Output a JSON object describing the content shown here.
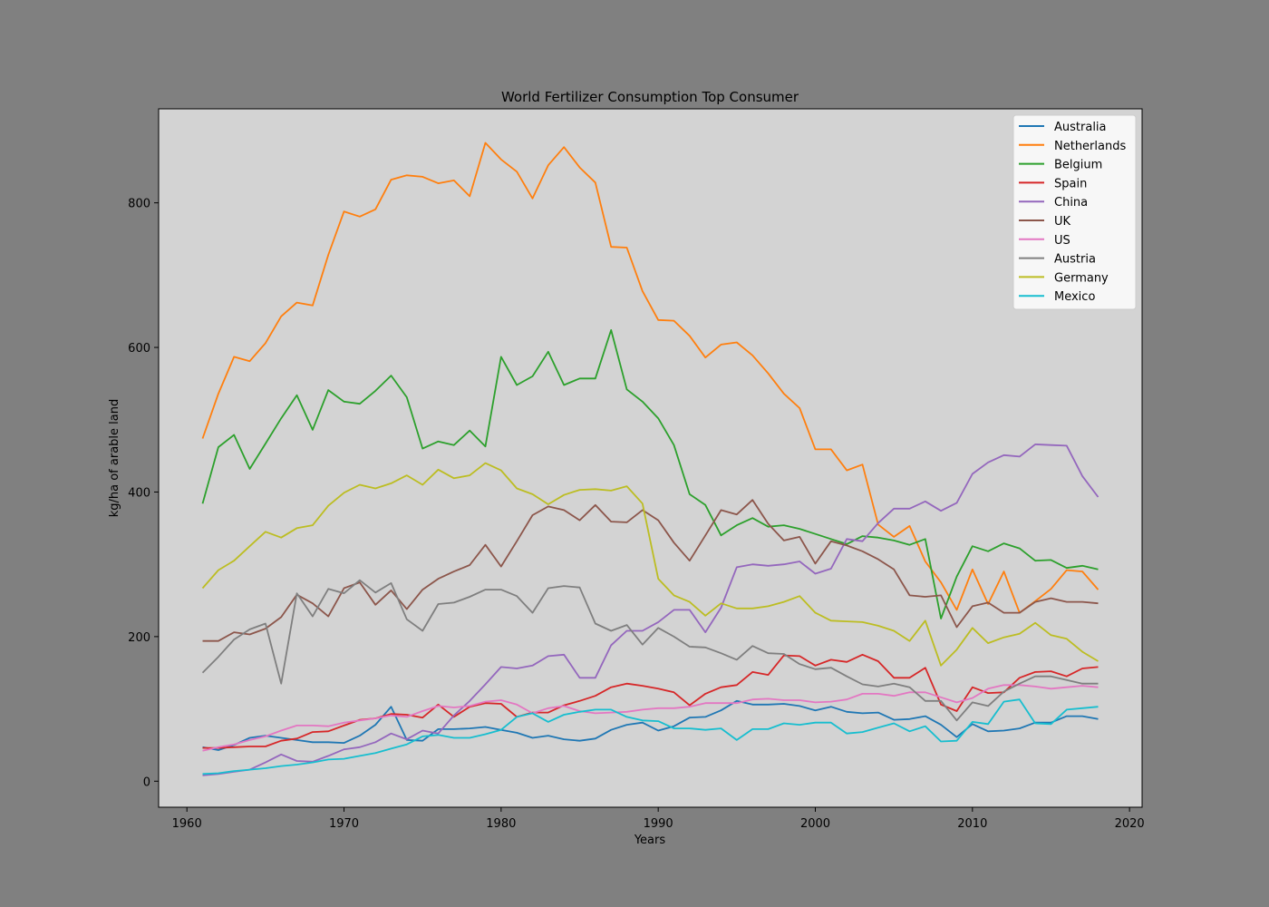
{
  "chart_data": {
    "type": "line",
    "title": "World Fertilizer Consumption Top Consumer",
    "xlabel": "Years",
    "ylabel": "kg/ha of arable land",
    "xlim": [
      1958.2,
      2020.8
    ],
    "ylim": [
      -36,
      930
    ],
    "xticks": [
      1960,
      1970,
      1980,
      1990,
      2000,
      2010,
      2020
    ],
    "yticks": [
      0,
      200,
      400,
      600,
      800
    ],
    "legend_position": "top-right",
    "x_start": 1961,
    "series": [
      {
        "name": "Australia",
        "color": "#1f77b4",
        "values": [
          47,
          43,
          50,
          60,
          63,
          60,
          57,
          54,
          54,
          53,
          63,
          78,
          103,
          57,
          56,
          72,
          72,
          73,
          75,
          71,
          67,
          60,
          63,
          58,
          56,
          59,
          71,
          78,
          81,
          70,
          76,
          88,
          89,
          98,
          111,
          106,
          106,
          107,
          104,
          98,
          103,
          96,
          94,
          95,
          85,
          86,
          90,
          78,
          61,
          79,
          69,
          70,
          73,
          81,
          81,
          90,
          90,
          86
        ]
      },
      {
        "name": "Netherlands",
        "color": "#ff7f0e",
        "values": [
          474,
          536,
          587,
          581,
          606,
          643,
          662,
          658,
          728,
          788,
          781,
          791,
          832,
          838,
          836,
          827,
          831,
          809,
          883,
          860,
          843,
          806,
          852,
          877,
          849,
          828,
          739,
          738,
          678,
          638,
          637,
          616,
          586,
          604,
          607,
          589,
          564,
          536,
          516,
          459,
          459,
          430,
          438,
          355,
          338,
          353,
          304,
          275,
          237,
          293,
          245,
          290,
          233,
          249,
          266,
          292,
          290,
          265
        ]
      },
      {
        "name": "Belgium",
        "color": "#2ca02c",
        "values": [
          384,
          462,
          479,
          432,
          467,
          502,
          534,
          486,
          541,
          525,
          522,
          540,
          561,
          531,
          460,
          470,
          465,
          485,
          463,
          587,
          548,
          560,
          594,
          548,
          557,
          557,
          624,
          542,
          525,
          502,
          465,
          397,
          382,
          340,
          354,
          364,
          352,
          354,
          349,
          342,
          335,
          328,
          339,
          337,
          333,
          327,
          335,
          225,
          283,
          325,
          318,
          329,
          322,
          305,
          306,
          295,
          298,
          293
        ]
      },
      {
        "name": "Spain",
        "color": "#d62728",
        "values": [
          46,
          46,
          47,
          48,
          48,
          56,
          59,
          68,
          69,
          77,
          85,
          87,
          93,
          92,
          88,
          106,
          89,
          103,
          108,
          107,
          89,
          95,
          95,
          105,
          111,
          118,
          130,
          135,
          132,
          128,
          123,
          105,
          121,
          130,
          133,
          151,
          147,
          174,
          173,
          160,
          168,
          165,
          175,
          166,
          143,
          143,
          157,
          106,
          97,
          130,
          122,
          123,
          143,
          151,
          152,
          145,
          156,
          158
        ]
      },
      {
        "name": "China",
        "color": "#9467bd",
        "values": [
          8,
          10,
          13,
          16,
          26,
          37,
          28,
          27,
          35,
          44,
          47,
          54,
          66,
          58,
          70,
          66,
          91,
          111,
          134,
          158,
          156,
          160,
          173,
          175,
          143,
          143,
          188,
          208,
          208,
          220,
          237,
          237,
          206,
          240,
          296,
          300,
          298,
          300,
          304,
          287,
          294,
          335,
          332,
          357,
          377,
          377,
          387,
          374,
          385,
          425,
          441,
          451,
          449,
          466,
          465,
          464,
          422,
          393
        ]
      },
      {
        "name": "UK",
        "color": "#8c564b",
        "values": [
          194,
          194,
          206,
          203,
          211,
          227,
          258,
          246,
          228,
          267,
          275,
          244,
          264,
          238,
          265,
          280,
          290,
          299,
          327,
          297,
          332,
          368,
          380,
          375,
          361,
          382,
          359,
          358,
          375,
          361,
          330,
          305,
          340,
          375,
          369,
          389,
          356,
          333,
          338,
          301,
          332,
          326,
          318,
          307,
          293,
          257,
          255,
          257,
          213,
          242,
          247,
          233,
          233,
          248,
          253,
          248,
          248,
          246
        ]
      },
      {
        "name": "US",
        "color": "#e377c2",
        "values": [
          42,
          47,
          51,
          57,
          62,
          70,
          77,
          77,
          76,
          81,
          84,
          87,
          91,
          89,
          97,
          104,
          102,
          104,
          110,
          112,
          106,
          94,
          101,
          104,
          97,
          94,
          95,
          96,
          99,
          101,
          101,
          103,
          108,
          108,
          108,
          113,
          114,
          112,
          112,
          109,
          110,
          113,
          121,
          121,
          118,
          123,
          123,
          116,
          109,
          115,
          128,
          133,
          133,
          131,
          128,
          130,
          132,
          130
        ]
      },
      {
        "name": "Austria",
        "color": "#7f7f7f",
        "values": [
          150,
          172,
          196,
          210,
          218,
          135,
          260,
          228,
          266,
          260,
          278,
          261,
          274,
          224,
          208,
          245,
          247,
          255,
          265,
          265,
          256,
          233,
          267,
          270,
          268,
          218,
          208,
          216,
          189,
          212,
          200,
          186,
          185,
          177,
          168,
          187,
          177,
          176,
          162,
          155,
          157,
          145,
          134,
          131,
          135,
          130,
          111,
          111,
          84,
          109,
          104,
          124,
          135,
          145,
          145,
          140,
          135,
          135
        ]
      },
      {
        "name": "Germany",
        "color": "#bcbd22",
        "values": [
          267,
          292,
          305,
          325,
          345,
          337,
          350,
          354,
          381,
          399,
          410,
          405,
          412,
          423,
          410,
          431,
          419,
          423,
          440,
          430,
          405,
          397,
          383,
          396,
          403,
          404,
          402,
          408,
          384,
          280,
          257,
          248,
          229,
          246,
          239,
          239,
          242,
          248,
          256,
          233,
          222,
          221,
          220,
          215,
          208,
          194,
          222,
          160,
          182,
          212,
          191,
          199,
          204,
          219,
          202,
          197,
          179,
          166
        ]
      },
      {
        "name": "Mexico",
        "color": "#17becf",
        "values": [
          10,
          11,
          14,
          16,
          18,
          21,
          23,
          26,
          30,
          31,
          35,
          39,
          45,
          51,
          62,
          64,
          60,
          60,
          65,
          71,
          89,
          94,
          82,
          92,
          96,
          99,
          99,
          89,
          84,
          83,
          73,
          73,
          71,
          73,
          57,
          72,
          72,
          80,
          78,
          81,
          81,
          66,
          68,
          74,
          80,
          69,
          76,
          55,
          56,
          82,
          79,
          110,
          113,
          80,
          79,
          99,
          101,
          103
        ]
      }
    ]
  }
}
